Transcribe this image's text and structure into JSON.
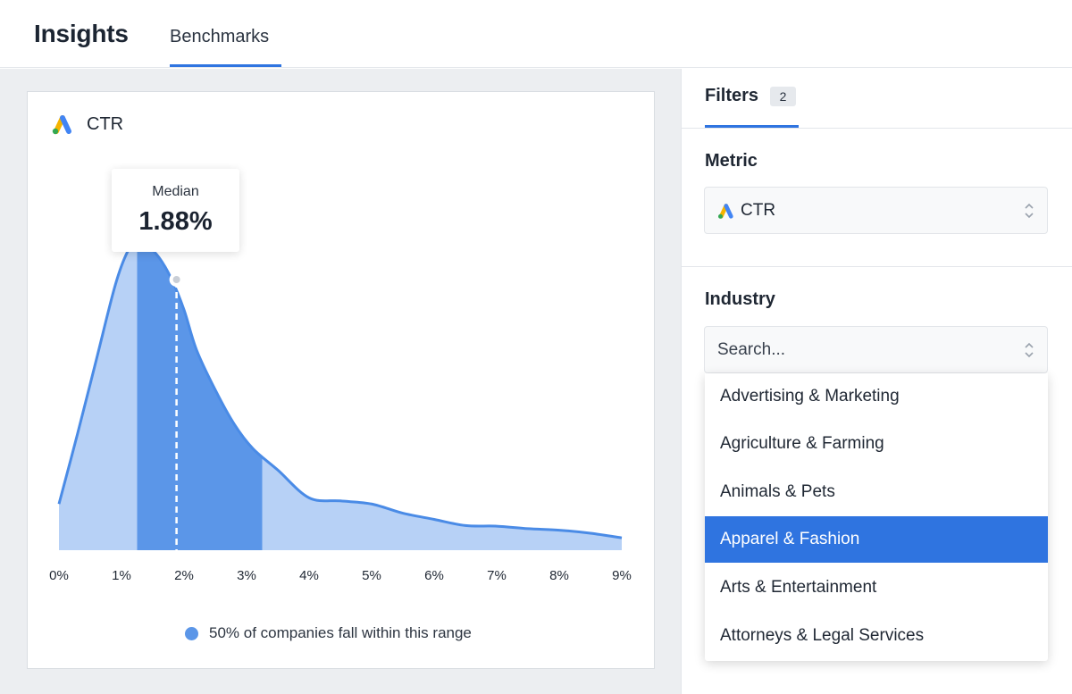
{
  "header": {
    "title": "Insights",
    "tabs": [
      {
        "label": "Benchmarks",
        "active": true
      }
    ]
  },
  "card": {
    "title": "CTR",
    "icon": "google-ads-icon",
    "tooltip": {
      "label": "Median",
      "value": "1.88%"
    },
    "legend": {
      "text": "50% of companies fall within this range",
      "color": "#5b96e8"
    }
  },
  "chart_data": {
    "type": "area",
    "title": "CTR",
    "xlabel": "",
    "ylabel": "",
    "x_unit": "%",
    "xlim": [
      0,
      9
    ],
    "tick_labels": [
      "0%",
      "1%",
      "2%",
      "3%",
      "4%",
      "5%",
      "6%",
      "7%",
      "8%",
      "9%"
    ],
    "x": [
      0,
      0.3,
      0.6,
      0.9,
      1.1,
      1.25,
      1.4,
      1.6,
      1.8,
      2.0,
      2.2,
      2.5,
      2.8,
      3.1,
      3.5,
      4.0,
      4.5,
      5.0,
      5.5,
      6.0,
      6.5,
      7.0,
      7.5,
      8.0,
      8.5,
      9.0
    ],
    "density": [
      0.15,
      0.38,
      0.62,
      0.86,
      0.97,
      1.0,
      0.99,
      0.95,
      0.88,
      0.78,
      0.65,
      0.52,
      0.41,
      0.33,
      0.26,
      0.17,
      0.16,
      0.15,
      0.12,
      0.1,
      0.08,
      0.078,
      0.07,
      0.065,
      0.055,
      0.04
    ],
    "median": 1.88,
    "highlight_range": [
      1.25,
      3.25
    ],
    "colors": {
      "line": "#4a8be6",
      "fill": "#b7d1f6",
      "highlight": "#5b96e8"
    },
    "grid": false
  },
  "filters": {
    "tab_label": "Filters",
    "count": "2",
    "metric": {
      "title": "Metric",
      "value": "CTR"
    },
    "industry": {
      "title": "Industry",
      "placeholder": "Search...",
      "options": [
        {
          "label": "Advertising & Marketing",
          "selected": false
        },
        {
          "label": "Agriculture & Farming",
          "selected": false
        },
        {
          "label": "Animals & Pets",
          "selected": false
        },
        {
          "label": "Apparel & Fashion",
          "selected": true
        },
        {
          "label": "Arts & Entertainment",
          "selected": false
        },
        {
          "label": "Attorneys & Legal Services",
          "selected": false
        }
      ]
    }
  }
}
